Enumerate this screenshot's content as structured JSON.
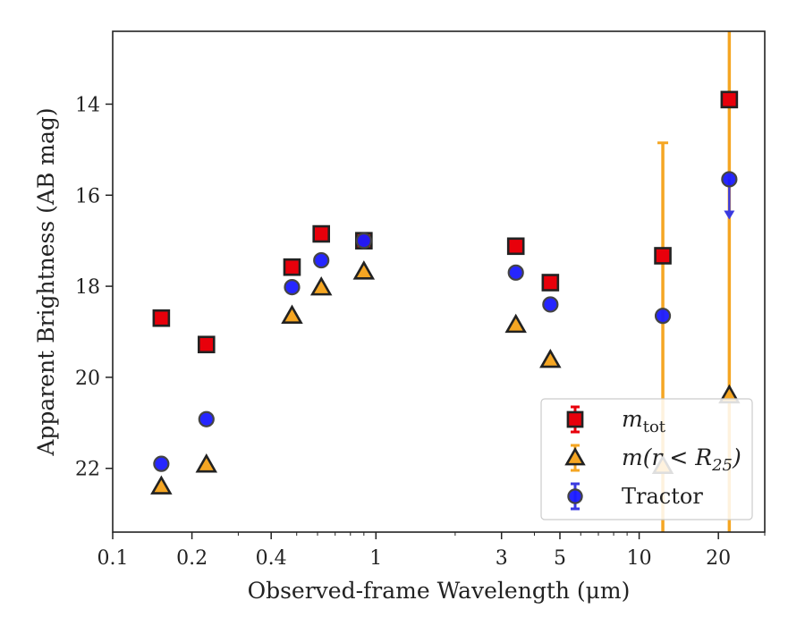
{
  "chart_data": {
    "type": "scatter",
    "xlabel": "Observed-frame Wavelength (μm)",
    "ylabel": "Apparent Brightness (AB mag)",
    "xscale": "log",
    "xlim": [
      0.1,
      30
    ],
    "ylim": [
      23.4,
      12.4
    ],
    "x_ticks": [
      0.1,
      0.2,
      0.4,
      1,
      3,
      5,
      10,
      20
    ],
    "x_tick_labels": [
      "0.1",
      "0.2",
      "0.4",
      "1",
      "3",
      "5",
      "10",
      "20"
    ],
    "y_ticks": [
      14,
      16,
      18,
      20,
      22
    ],
    "y_tick_labels": [
      "14",
      "16",
      "18",
      "20",
      "22"
    ],
    "grid": false,
    "legend_position": "bottom-right",
    "series": [
      {
        "name": "m_tot",
        "legend_label": "m",
        "legend_sub": "tot",
        "marker": "square",
        "color": "#e8000b",
        "edge_color": "#222222",
        "error_color": "#e8000b",
        "points": [
          {
            "x": 0.153,
            "y": 18.7
          },
          {
            "x": 0.227,
            "y": 19.28
          },
          {
            "x": 0.48,
            "y": 17.58
          },
          {
            "x": 0.62,
            "y": 16.85
          },
          {
            "x": 0.9,
            "y": 17.0
          },
          {
            "x": 3.4,
            "y": 17.12
          },
          {
            "x": 4.6,
            "y": 17.92
          },
          {
            "x": 12.3,
            "y": 17.33
          },
          {
            "x": 22.0,
            "y": 13.9
          }
        ]
      },
      {
        "name": "m(r < R25)",
        "legend_label": "m(r < R",
        "legend_sub": "25",
        "legend_suffix": ")",
        "marker": "triangle",
        "color": "#f5a623",
        "edge_color": "#222222",
        "error_color": "#f5a623",
        "points": [
          {
            "x": 0.153,
            "y": 22.4
          },
          {
            "x": 0.227,
            "y": 21.92
          },
          {
            "x": 0.48,
            "y": 18.65
          },
          {
            "x": 0.62,
            "y": 18.03
          },
          {
            "x": 0.9,
            "y": 17.68
          },
          {
            "x": 3.4,
            "y": 18.85
          },
          {
            "x": 4.6,
            "y": 19.62
          },
          {
            "x": 12.3,
            "y": 21.95,
            "yerr_low": 14.85,
            "yerr_high": 23.4
          },
          {
            "x": 22.0,
            "y": 20.4,
            "yerr_low": 12.4,
            "yerr_high": 23.4
          }
        ]
      },
      {
        "name": "Tractor",
        "legend_label": "Tractor",
        "marker": "circle",
        "color": "#1a1aff",
        "edge_color": "#444444",
        "error_color": "#3a3ae0",
        "points": [
          {
            "x": 0.153,
            "y": 21.9
          },
          {
            "x": 0.227,
            "y": 20.92
          },
          {
            "x": 0.48,
            "y": 18.02
          },
          {
            "x": 0.62,
            "y": 17.43
          },
          {
            "x": 0.9,
            "y": 17.0
          },
          {
            "x": 3.4,
            "y": 17.7
          },
          {
            "x": 4.6,
            "y": 18.4
          },
          {
            "x": 12.3,
            "y": 18.65
          },
          {
            "x": 22.0,
            "y": 15.65,
            "upper_limit": true
          }
        ]
      }
    ]
  }
}
